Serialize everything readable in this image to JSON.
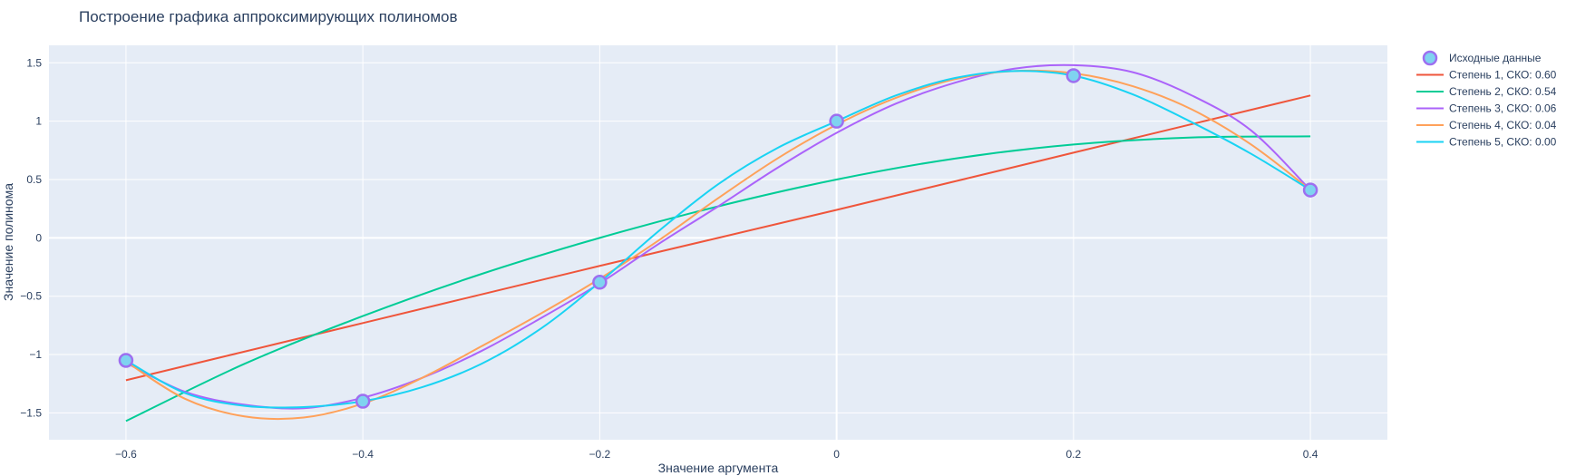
{
  "chart_data": {
    "type": "line",
    "title": "Построение графика аппроксимирующих полиномов",
    "xlabel": "Значение аргумента",
    "ylabel": "Значение полинома",
    "xlim": [
      -0.665,
      0.465
    ],
    "ylim": [
      -1.73,
      1.65
    ],
    "xticks": [
      -0.6,
      -0.4,
      -0.2,
      0,
      0.2,
      0.4
    ],
    "xtick_labels": [
      "−0.6",
      "−0.4",
      "−0.2",
      "0",
      "0.2",
      "0.4"
    ],
    "yticks": [
      -1.5,
      -1,
      -0.5,
      0,
      0.5,
      1,
      1.5
    ],
    "ytick_labels": [
      "−1.5",
      "−1",
      "−0.5",
      "0",
      "0.5",
      "1",
      "1.5"
    ],
    "grid": true,
    "legend_position": "right",
    "scatter": {
      "name": "Исходные данные",
      "color": "#7fd3f0",
      "edge_color": "#9d6ff0",
      "x": [
        -0.6,
        -0.4,
        -0.2,
        0,
        0.2,
        0.4
      ],
      "y": [
        -1.05,
        -1.4,
        -0.38,
        1.0,
        1.39,
        0.41
      ]
    },
    "series": [
      {
        "name": "Степень 1, СКО: 0.60",
        "color": "#ef553b",
        "x": [
          -0.6,
          -0.4,
          -0.2,
          0,
          0.2,
          0.4
        ],
        "y": [
          -1.22,
          -0.73,
          -0.24,
          0.24,
          0.73,
          1.22
        ]
      },
      {
        "name": "Степень 2, СКО: 0.54",
        "color": "#00cc96",
        "x": [
          -0.6,
          -0.5,
          -0.4,
          -0.3,
          -0.2,
          -0.1,
          0,
          0.1,
          0.2,
          0.3,
          0.4
        ],
        "y": [
          -1.57,
          -1.08,
          -0.67,
          -0.31,
          0.0,
          0.27,
          0.5,
          0.68,
          0.8,
          0.86,
          0.87
        ]
      },
      {
        "name": "Степень 3, СКО: 0.06",
        "color": "#ab63fa",
        "x": [
          -0.6,
          -0.55,
          -0.5,
          -0.45,
          -0.4,
          -0.35,
          -0.3,
          -0.25,
          -0.2,
          -0.15,
          -0.1,
          -0.05,
          0,
          0.05,
          0.1,
          0.15,
          0.2,
          0.25,
          0.3,
          0.35,
          0.4
        ],
        "y": [
          -1.07,
          -1.32,
          -1.43,
          -1.46,
          -1.37,
          -1.2,
          -0.97,
          -0.69,
          -0.39,
          -0.05,
          0.27,
          0.6,
          0.9,
          1.15,
          1.33,
          1.45,
          1.48,
          1.42,
          1.22,
          0.92,
          0.41
        ]
      },
      {
        "name": "Степень 4, СКО: 0.04",
        "color": "#ffa15a",
        "x": [
          -0.6,
          -0.55,
          -0.5,
          -0.45,
          -0.4,
          -0.35,
          -0.3,
          -0.25,
          -0.2,
          -0.15,
          -0.1,
          -0.05,
          0,
          0.05,
          0.1,
          0.15,
          0.2,
          0.25,
          0.3,
          0.35,
          0.4
        ],
        "y": [
          -1.06,
          -1.38,
          -1.53,
          -1.54,
          -1.42,
          -1.2,
          -0.93,
          -0.65,
          -0.35,
          -0.02,
          0.34,
          0.68,
          0.97,
          1.2,
          1.36,
          1.43,
          1.41,
          1.3,
          1.1,
          0.8,
          0.41
        ]
      },
      {
        "name": "Степень 5, СКО: 0.00",
        "color": "#19d3f3",
        "x": [
          -0.6,
          -0.55,
          -0.5,
          -0.45,
          -0.4,
          -0.35,
          -0.3,
          -0.25,
          -0.2,
          -0.15,
          -0.1,
          -0.05,
          0,
          0.05,
          0.1,
          0.15,
          0.2,
          0.25,
          0.3,
          0.35,
          0.4
        ],
        "y": [
          -1.05,
          -1.33,
          -1.44,
          -1.45,
          -1.4,
          -1.28,
          -1.08,
          -0.78,
          -0.38,
          0.06,
          0.46,
          0.77,
          1.0,
          1.22,
          1.37,
          1.43,
          1.39,
          1.23,
          0.99,
          0.72,
          0.41
        ]
      }
    ]
  }
}
